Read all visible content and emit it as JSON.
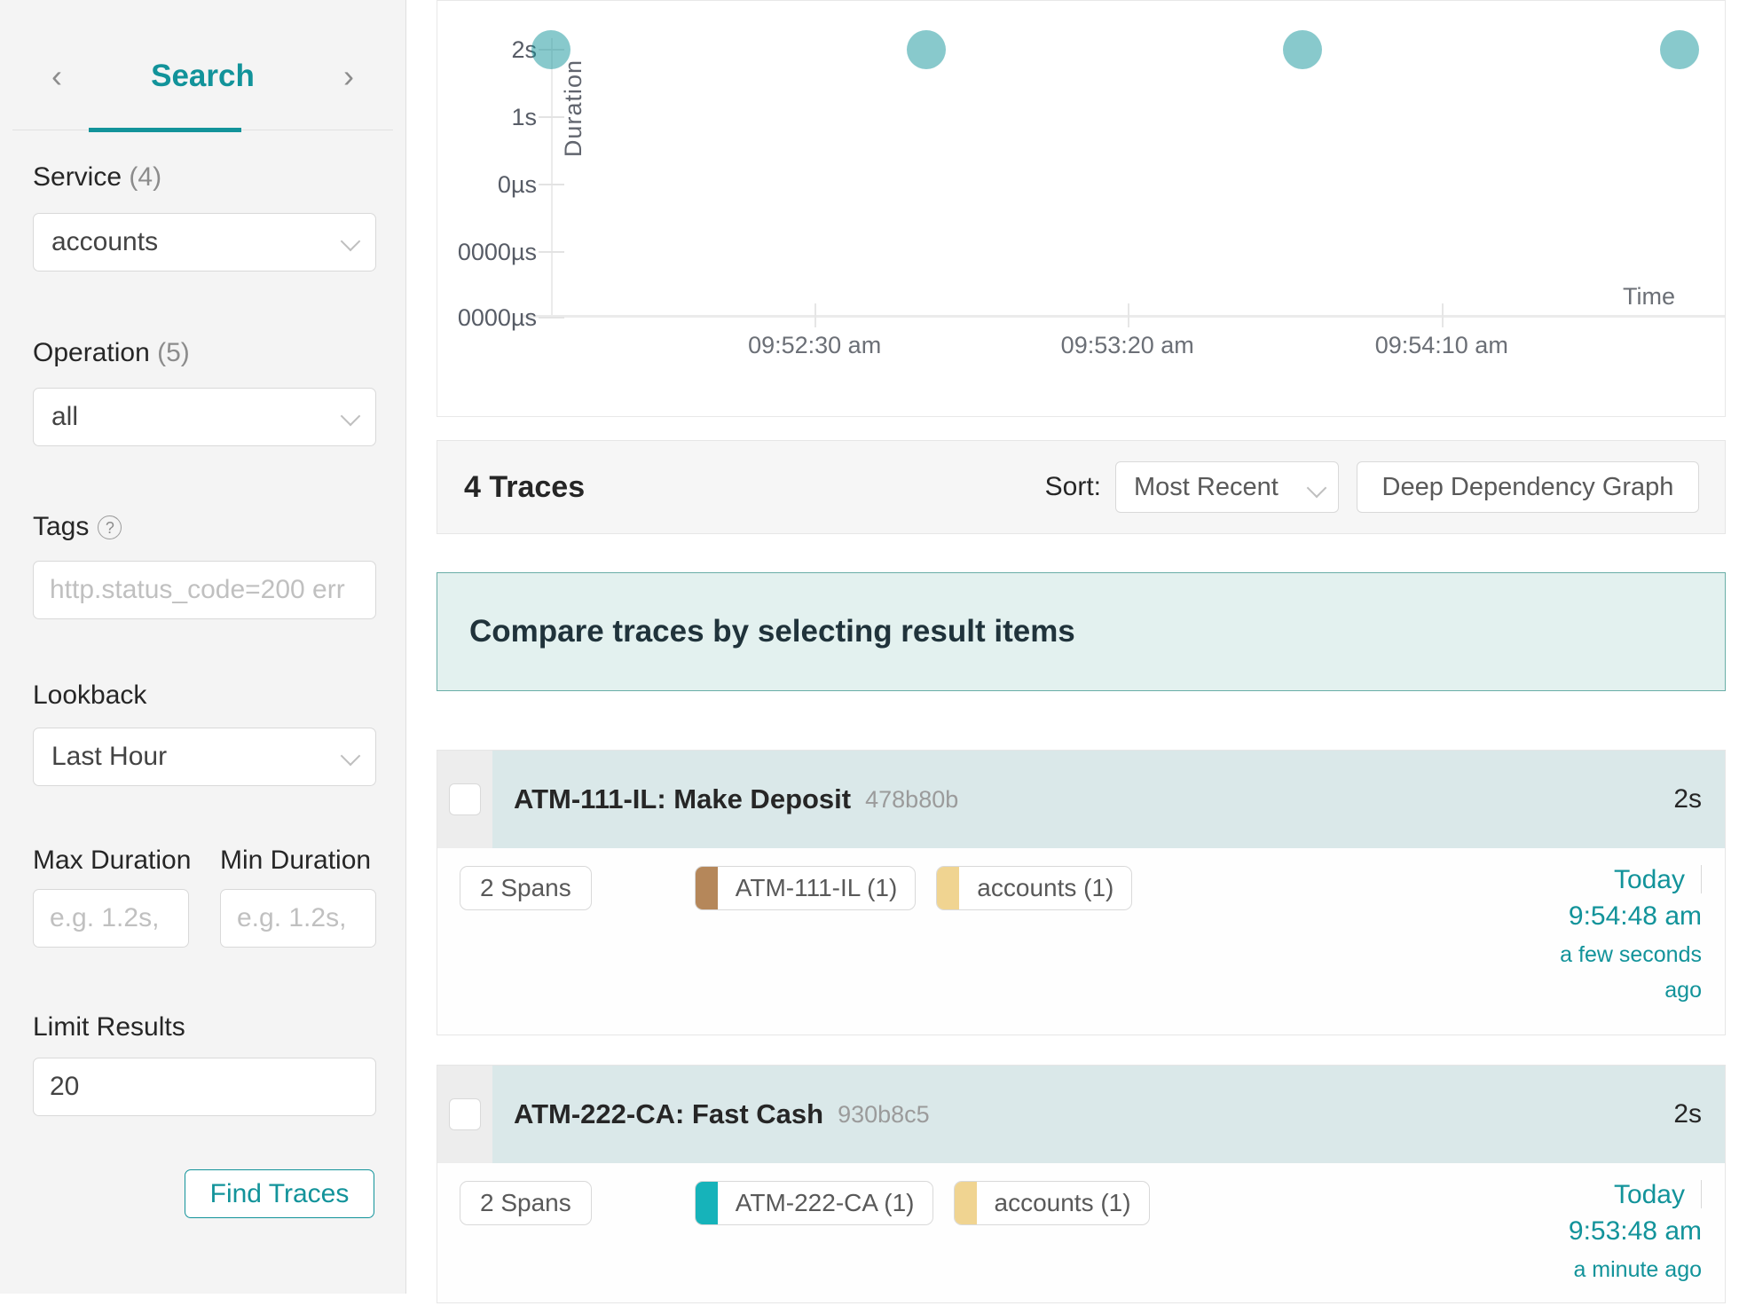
{
  "accent_color": "#12939a",
  "sidebar": {
    "nav": {
      "prev_icon": "‹",
      "next_icon": "›",
      "title": "Search"
    },
    "service": {
      "label": "Service",
      "count": "(4)",
      "value": "accounts"
    },
    "operation": {
      "label": "Operation",
      "count": "(5)",
      "value": "all"
    },
    "tags": {
      "label": "Tags",
      "help_icon": "?",
      "placeholder": "http.status_code=200 err"
    },
    "lookback": {
      "label": "Lookback",
      "value": "Last Hour"
    },
    "max_duration": {
      "label": "Max Duration",
      "placeholder": "e.g. 1.2s,"
    },
    "min_duration": {
      "label": "Min Duration",
      "placeholder": "e.g. 1.2s,"
    },
    "limit": {
      "label": "Limit Results",
      "value": "20"
    },
    "find_traces_label": "Find Traces"
  },
  "chart_data": {
    "type": "scatter",
    "title": "",
    "xlabel": "Time",
    "ylabel": "Duration",
    "y_ticks": [
      "2s",
      "1s",
      "0µs",
      "0000µs",
      "0000µs"
    ],
    "x_ticks": [
      "09:52:30 am",
      "09:53:20 am",
      "09:54:10 am"
    ],
    "x_tick_pct": [
      29.3,
      53.6,
      78.0
    ],
    "points": [
      {
        "duration": "2s",
        "x_pct": 8.8
      },
      {
        "duration": "2s",
        "x_pct": 38.0
      },
      {
        "duration": "2s",
        "x_pct": 67.2
      },
      {
        "duration": "2s",
        "x_pct": 96.5
      }
    ],
    "point_color": "#88c9cc",
    "grid": "ticks-only",
    "legend": "none"
  },
  "results_header": {
    "count_label": "4 Traces",
    "sort_label": "Sort:",
    "sort_value": "Most Recent",
    "ddg_button_label": "Deep Dependency Graph"
  },
  "banner": {
    "text": "Compare traces by selecting result items"
  },
  "traces": [
    {
      "title": "ATM-111-IL: Make Deposit",
      "trace_id": "478b80b",
      "duration": "2s",
      "spans_label": "2 Spans",
      "services": [
        {
          "name": "ATM-111-IL (1)",
          "color": "#b5875a"
        },
        {
          "name": "accounts (1)",
          "color": "#f0d491"
        }
      ],
      "date": "Today",
      "time": "9:54:48 am",
      "relative": "a few seconds ago"
    },
    {
      "title": "ATM-222-CA: Fast Cash",
      "trace_id": "930b8c5",
      "duration": "2s",
      "spans_label": "2 Spans",
      "services": [
        {
          "name": "ATM-222-CA (1)",
          "color": "#16b3ba"
        },
        {
          "name": "accounts (1)",
          "color": "#f0d491"
        }
      ],
      "date": "Today",
      "time": "9:53:48 am",
      "relative": "a minute ago"
    }
  ]
}
